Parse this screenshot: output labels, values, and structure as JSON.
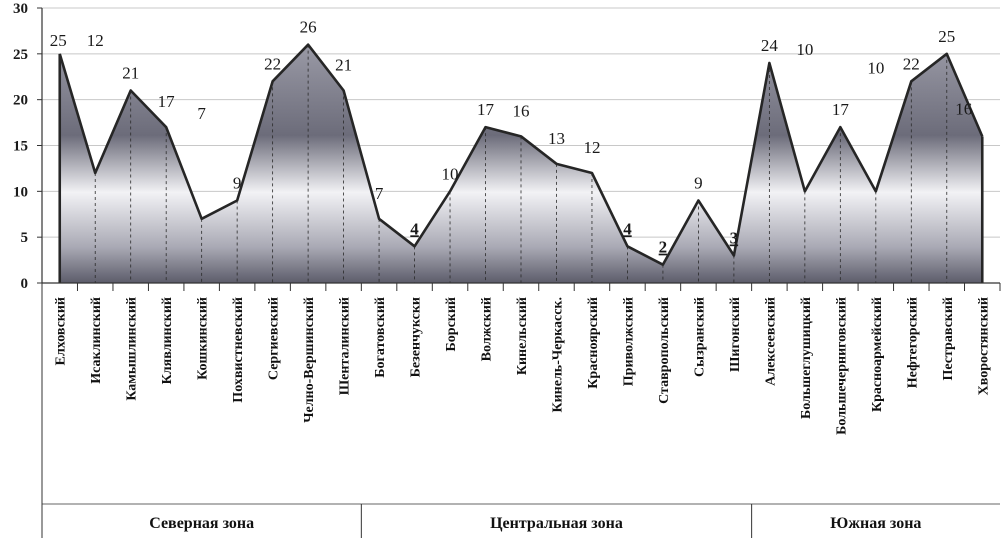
{
  "chart_data": {
    "type": "area",
    "ylim": [
      0,
      30
    ],
    "yticks": [
      0,
      5,
      10,
      15,
      20,
      25,
      30
    ],
    "grid": "horizontal-major",
    "legend": "none",
    "categories": [
      "Елховский",
      "Исаклинский",
      "Камышлинский",
      "Клявлинский",
      "Кошкинский",
      "Похвистневский",
      "Сергиевский",
      "Челно-Вершинский",
      "Шенталинский",
      "Богатовский",
      "Безенчукски",
      "Борский",
      "Волжский",
      "Кинельский",
      "Кинель-Черкасск.",
      "Красноярский",
      "Приволжский",
      "Ставропольский",
      "Сызранский",
      "Шигонский",
      "Алексеевский",
      "Большеглушицкий",
      "Большечерниговский",
      "Красноармейский",
      "Нефтегорский",
      "Пестравский",
      "Хворостянский"
    ],
    "values": [
      25,
      12,
      21,
      17,
      7,
      9,
      22,
      26,
      21,
      7,
      4,
      10,
      17,
      16,
      13,
      12,
      4,
      2,
      9,
      3,
      24,
      10,
      17,
      10,
      22,
      25,
      16
    ],
    "data_labels": [
      "25",
      "12",
      "21",
      "17",
      "7",
      "9",
      "22",
      "26",
      "21",
      "7",
      "4",
      "10",
      "17",
      "16",
      "13",
      "12",
      "4",
      "2",
      "9",
      "3",
      "24",
      "10",
      "17",
      "10",
      "22",
      "25",
      "16"
    ],
    "underlined_labels": [
      10,
      16,
      17,
      19
    ],
    "zones": [
      {
        "name": "Северная зона",
        "from": 0,
        "to": 8
      },
      {
        "name": "Центральная зона",
        "from": 9,
        "to": 19
      },
      {
        "name": "Южная зона",
        "from": 20,
        "to": 26
      }
    ],
    "colors": {
      "line": "#262626",
      "fill_dark": "#70707e",
      "fill_light": "#f0f0f4",
      "grid": "#c8c8c8"
    }
  }
}
